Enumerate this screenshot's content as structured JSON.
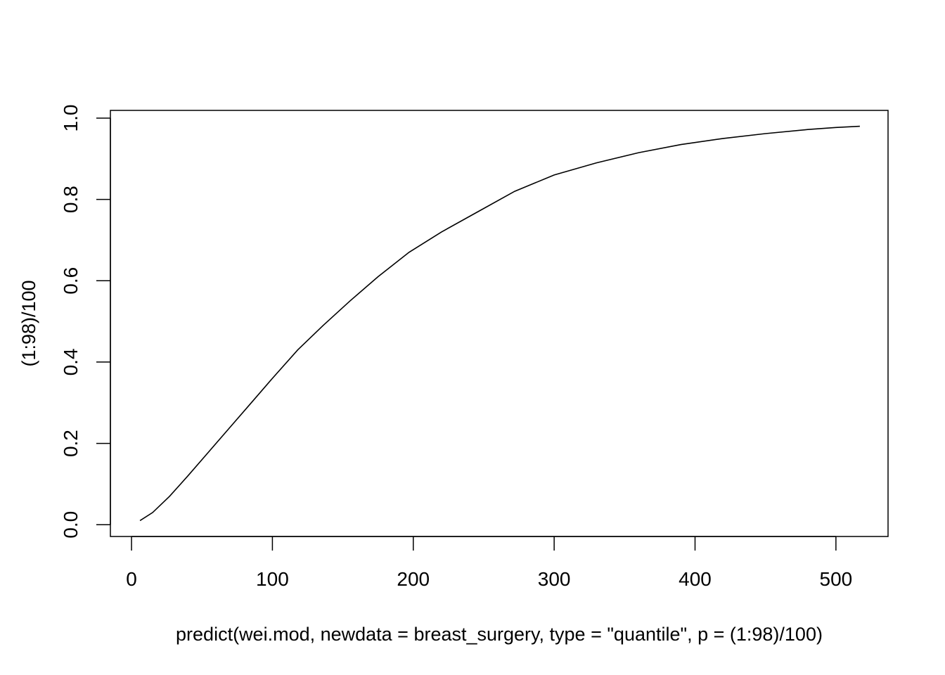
{
  "chart_data": {
    "type": "line",
    "xlabel": "predict(wei.mod, newdata = breast_surgery, type = \"quantile\", p = (1:98)/100)",
    "ylabel": "(1:98)/100",
    "xlim": [
      -15,
      537
    ],
    "ylim": [
      -0.029,
      1.019
    ],
    "x_ticks": [
      0,
      100,
      200,
      300,
      400,
      500
    ],
    "y_ticks": [
      0.0,
      0.2,
      0.4,
      0.6,
      0.8,
      1.0
    ],
    "x_tick_labels": [
      "0",
      "100",
      "200",
      "300",
      "400",
      "500"
    ],
    "y_tick_labels": [
      "0.0",
      "0.2",
      "0.4",
      "0.6",
      "0.8",
      "1.0"
    ],
    "grid": false,
    "series": [
      {
        "x": [
          6,
          15,
          27,
          40,
          55,
          70,
          85,
          100,
          118,
          136,
          155,
          175,
          197,
          220,
          246,
          272,
          300,
          330,
          360,
          390,
          420,
          450,
          480,
          500,
          517
        ],
        "y": [
          0.01,
          0.03,
          0.07,
          0.12,
          0.18,
          0.24,
          0.3,
          0.36,
          0.43,
          0.49,
          0.55,
          0.61,
          0.67,
          0.72,
          0.77,
          0.82,
          0.86,
          0.89,
          0.915,
          0.935,
          0.95,
          0.962,
          0.972,
          0.977,
          0.98
        ]
      }
    ]
  }
}
